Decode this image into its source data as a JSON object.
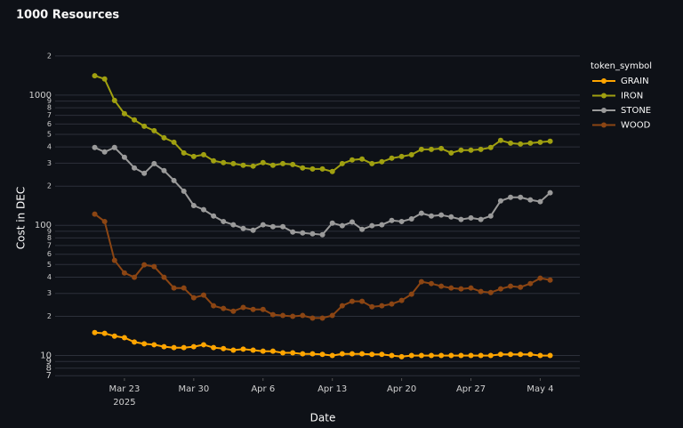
{
  "chart_data": {
    "type": "line",
    "title": "1000 Resources",
    "x_label": "Date",
    "y_label": "Cost in DEC",
    "legend_title": "token_symbol",
    "legend_position": "top-right",
    "log_y": true,
    "grid": true,
    "x": [
      "2025-03-20",
      "2025-03-21",
      "2025-03-22",
      "2025-03-23",
      "2025-03-24",
      "2025-03-25",
      "2025-03-26",
      "2025-03-27",
      "2025-03-28",
      "2025-03-29",
      "2025-03-30",
      "2025-03-31",
      "2025-04-01",
      "2025-04-02",
      "2025-04-03",
      "2025-04-04",
      "2025-04-05",
      "2025-04-06",
      "2025-04-07",
      "2025-04-08",
      "2025-04-09",
      "2025-04-10",
      "2025-04-11",
      "2025-04-12",
      "2025-04-13",
      "2025-04-14",
      "2025-04-15",
      "2025-04-16",
      "2025-04-17",
      "2025-04-18",
      "2025-04-19",
      "2025-04-20",
      "2025-04-21",
      "2025-04-22",
      "2025-04-23",
      "2025-04-24",
      "2025-04-25",
      "2025-04-26",
      "2025-04-27",
      "2025-04-28",
      "2025-04-29",
      "2025-04-30",
      "2025-05-01",
      "2025-05-02",
      "2025-05-03",
      "2025-05-04",
      "2025-05-05"
    ],
    "xlim": [
      "2025-03-16",
      "2025-05-08"
    ],
    "xticks": [
      {
        "value": "2025-03-23",
        "label": "Mar 23"
      },
      {
        "value": "2025-03-30",
        "label": "Mar 30"
      },
      {
        "value": "2025-04-06",
        "label": "Apr 6"
      },
      {
        "value": "2025-04-13",
        "label": "Apr 13"
      },
      {
        "value": "2025-04-20",
        "label": "Apr 20"
      },
      {
        "value": "2025-04-27",
        "label": "Apr 27"
      },
      {
        "value": "2025-05-04",
        "label": "May 4"
      }
    ],
    "xtick_year": "2025",
    "ylim": [
      6.7,
      2300
    ],
    "yticks": [
      7,
      8,
      9,
      10,
      {
        "value": 20,
        "label": "2"
      },
      {
        "value": 30,
        "label": "3"
      },
      {
        "value": 40,
        "label": "4"
      },
      {
        "value": 50,
        "label": "5"
      },
      {
        "value": 60,
        "label": "6"
      },
      {
        "value": 70,
        "label": "7"
      },
      {
        "value": 80,
        "label": "8"
      },
      {
        "value": 90,
        "label": "9"
      },
      100,
      {
        "value": 200,
        "label": "2"
      },
      {
        "value": 300,
        "label": "3"
      },
      {
        "value": 400,
        "label": "4"
      },
      {
        "value": 500,
        "label": "5"
      },
      {
        "value": 600,
        "label": "6"
      },
      {
        "value": 700,
        "label": "7"
      },
      {
        "value": 800,
        "label": "8"
      },
      {
        "value": 900,
        "label": "9"
      },
      1000,
      {
        "value": 2000,
        "label": "2"
      }
    ],
    "series": [
      {
        "name": "GRAIN",
        "color": "#ffa500",
        "values": [
          15.0,
          14.8,
          14.1,
          13.7,
          12.7,
          12.3,
          12.1,
          11.7,
          11.5,
          11.5,
          11.7,
          12.1,
          11.5,
          11.3,
          11.0,
          11.2,
          11.0,
          10.8,
          10.8,
          10.5,
          10.5,
          10.3,
          10.3,
          10.2,
          10.0,
          10.3,
          10.3,
          10.3,
          10.2,
          10.2,
          10.0,
          9.8,
          10.0,
          10.0,
          10.0,
          10.0,
          10.0,
          10.0,
          10.0,
          10.0,
          10.0,
          10.2,
          10.2,
          10.2,
          10.2,
          10.0,
          10.0
        ]
      },
      {
        "name": "IRON",
        "color": "#a0a010",
        "values": [
          1410,
          1330,
          910,
          720,
          645,
          577,
          533,
          470,
          435,
          360,
          338,
          349,
          313,
          303,
          298,
          289,
          285,
          303,
          289,
          298,
          293,
          276,
          271,
          271,
          259,
          298,
          318,
          323,
          298,
          308,
          328,
          338,
          349,
          383,
          383,
          389,
          360,
          378,
          378,
          383,
          396,
          449,
          428,
          421,
          428,
          435,
          442
        ]
      },
      {
        "name": "STONE",
        "color": "#9a9a9a",
        "values": [
          396,
          366,
          396,
          333,
          276,
          251,
          298,
          263,
          221,
          183,
          142,
          132,
          118,
          107,
          101,
          94.6,
          91.7,
          101,
          97.7,
          97.7,
          88.9,
          87.5,
          86.1,
          84.8,
          104,
          99.3,
          106,
          93.1,
          99.3,
          101,
          109,
          107,
          112,
          124,
          118,
          120,
          116,
          111,
          114,
          111,
          118,
          154,
          164,
          164,
          157,
          152,
          178
        ]
      },
      {
        "name": "WOOD",
        "color": "#8b4513",
        "values": [
          122,
          107,
          53.8,
          43.1,
          39.9,
          49.7,
          48.2,
          39.9,
          33.0,
          33.0,
          27.8,
          29.1,
          24.1,
          23.0,
          21.9,
          23.4,
          22.6,
          22.6,
          20.6,
          20.3,
          20.0,
          20.3,
          19.4,
          19.4,
          20.3,
          24.1,
          26.1,
          26.1,
          23.7,
          24.1,
          24.9,
          26.5,
          29.6,
          36.9,
          35.7,
          34.1,
          33.0,
          32.5,
          33.0,
          31.0,
          30.5,
          32.5,
          34.1,
          33.5,
          35.7,
          39.3,
          38.0
        ]
      }
    ]
  }
}
